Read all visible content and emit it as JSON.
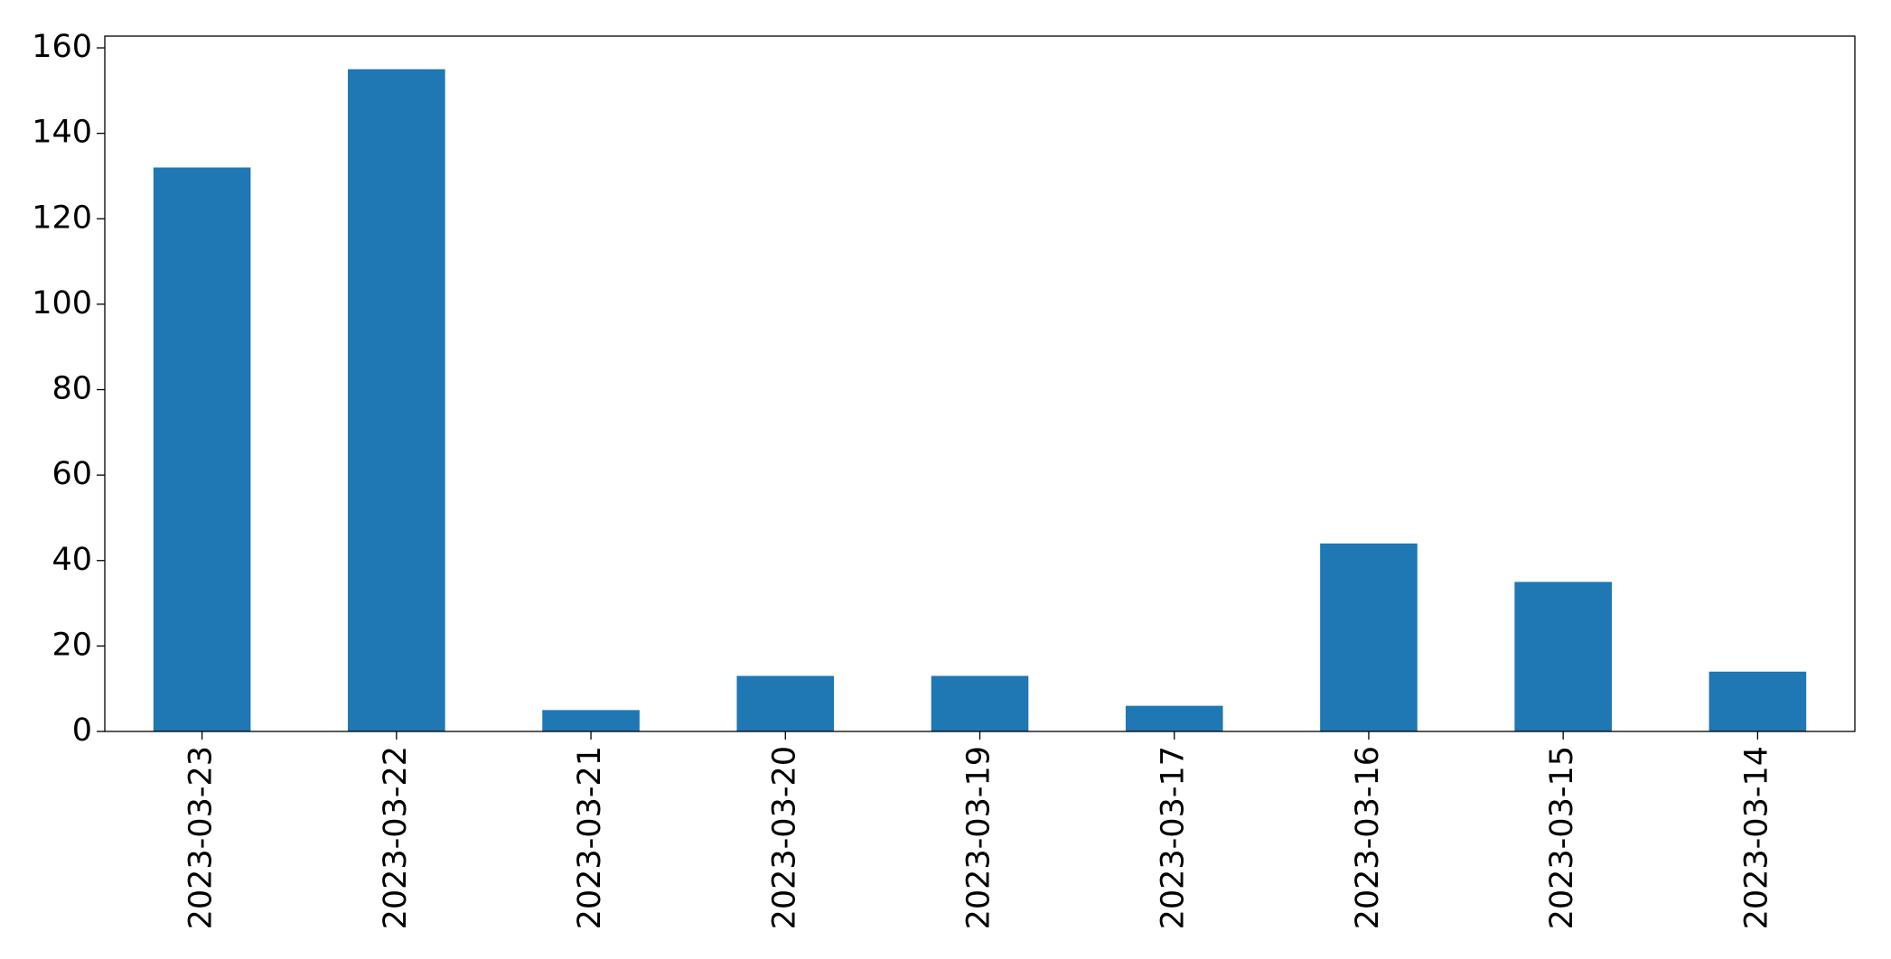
{
  "chart_data": {
    "type": "bar",
    "categories": [
      "2023-03-23",
      "2023-03-22",
      "2023-03-21",
      "2023-03-20",
      "2023-03-19",
      "2023-03-17",
      "2023-03-16",
      "2023-03-15",
      "2023-03-14"
    ],
    "values": [
      132,
      155,
      5,
      13,
      13,
      6,
      44,
      35,
      14
    ],
    "color": "#1f77b4",
    "ylim": [
      0,
      162.75
    ],
    "yticks": [
      0,
      20,
      40,
      60,
      80,
      100,
      120,
      140,
      160
    ],
    "grid": false
  }
}
